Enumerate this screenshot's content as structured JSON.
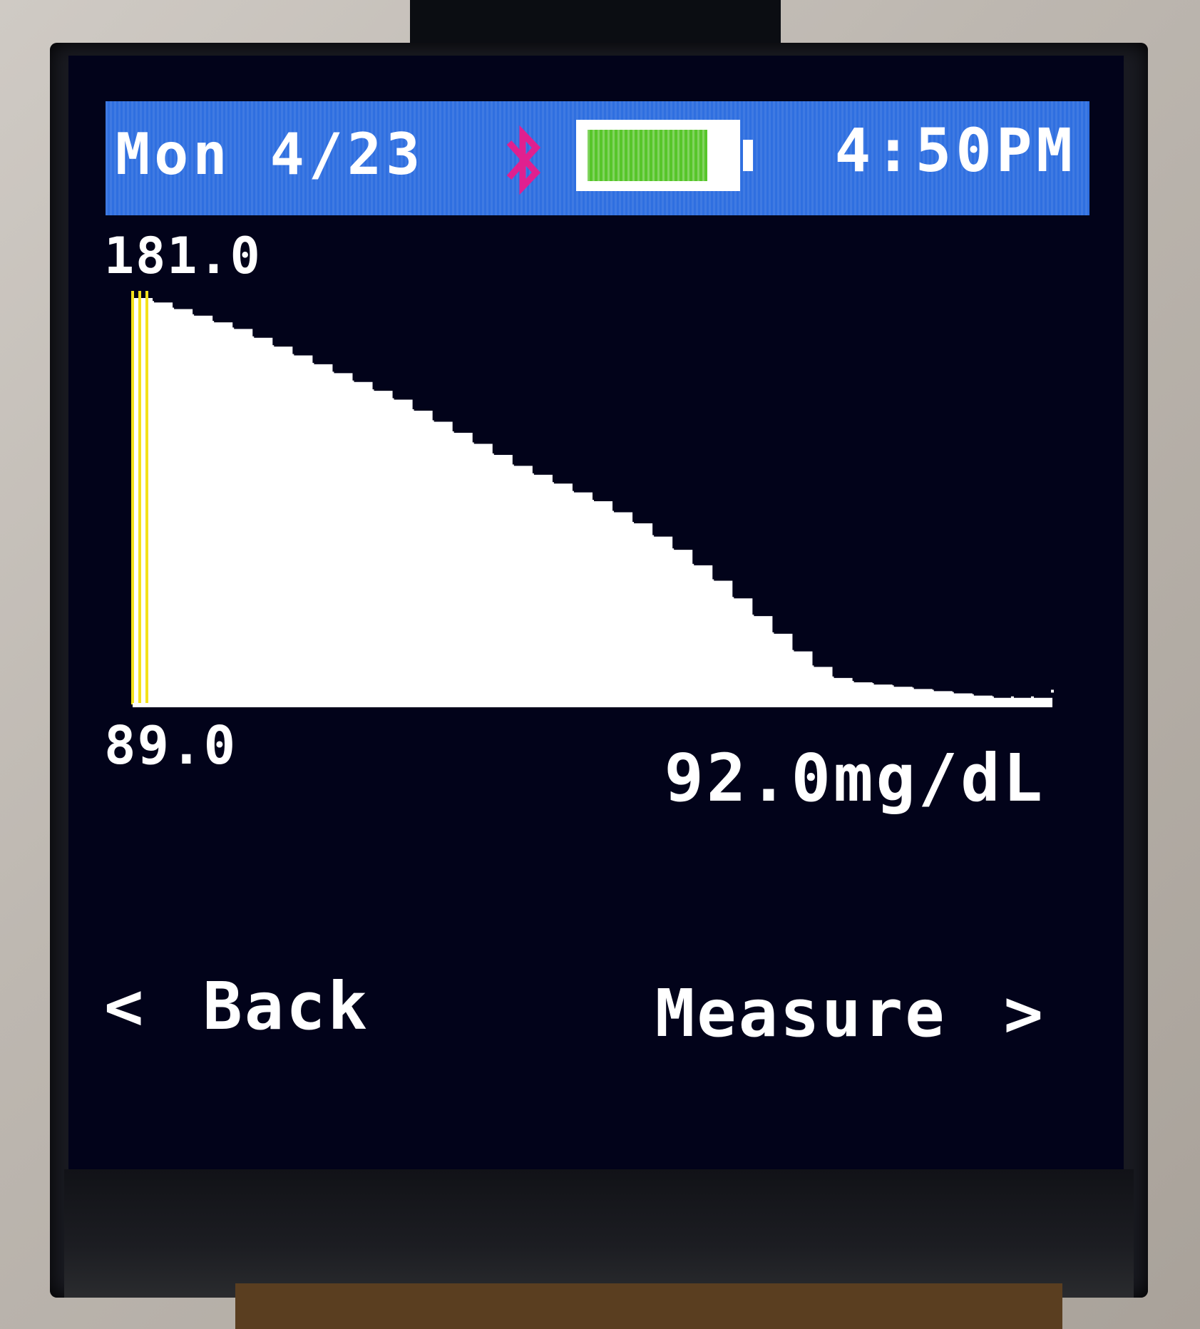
{
  "status_bar": {
    "date": "Mon 4/23",
    "time": "4:50PM",
    "bluetooth_icon": "bluetooth-icon",
    "battery_icon": "battery-icon",
    "battery_level": 0.85,
    "bluetooth_color": "#e0208f",
    "battery_color": "#57c62a",
    "background_color": "#2f6fe0"
  },
  "chart_data": {
    "type": "area",
    "y_max_label": "181.0",
    "y_min_label": "89.0",
    "ylim": [
      89.0,
      181.0
    ],
    "values": [
      181,
      180,
      178.5,
      177,
      175.5,
      174,
      172,
      170,
      168,
      166,
      164,
      162,
      160,
      158,
      155.5,
      153,
      150.5,
      148,
      145.5,
      143,
      141,
      139,
      137,
      135,
      132.5,
      130,
      127,
      124,
      120.5,
      117,
      113,
      109,
      105,
      101,
      97.5,
      95,
      94,
      93.5,
      93,
      92.5,
      92,
      91.5,
      91,
      90.5,
      90.5,
      90.5,
      92
    ],
    "fill_color": "#ffffff",
    "cursor_color": "#f4e21a"
  },
  "reading": {
    "value": "92.0mg/dL"
  },
  "nav": {
    "back_chevron": "<",
    "back_label": "Back",
    "measure_label": "Measure",
    "measure_chevron": ">"
  }
}
